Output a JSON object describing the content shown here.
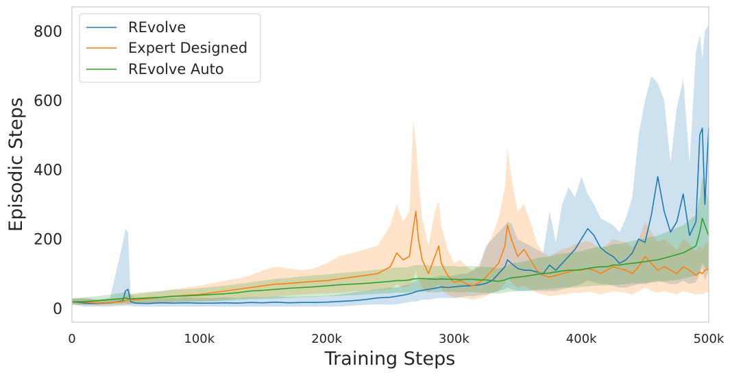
{
  "chart_data": {
    "type": "line",
    "title": "",
    "xlabel": "Training Steps",
    "ylabel": "Episodic Steps",
    "xlim": [
      0,
      500000
    ],
    "ylim": [
      -40,
      870
    ],
    "x_ticks": [
      0,
      100000,
      200000,
      300000,
      400000,
      500000
    ],
    "x_tick_labels": [
      "0",
      "100k",
      "200k",
      "300k",
      "400k",
      "500k"
    ],
    "y_ticks": [
      0,
      200,
      400,
      600,
      800
    ],
    "y_tick_labels": [
      "0",
      "200",
      "400",
      "600",
      "800"
    ],
    "grid": false,
    "legend": "top-left",
    "x": [
      0,
      10000,
      20000,
      30000,
      40000,
      42000,
      44000,
      46000,
      50000,
      60000,
      70000,
      80000,
      90000,
      100000,
      110000,
      120000,
      130000,
      140000,
      150000,
      160000,
      170000,
      180000,
      190000,
      200000,
      210000,
      220000,
      230000,
      240000,
      250000,
      255000,
      260000,
      265000,
      268000,
      270000,
      272000,
      275000,
      280000,
      285000,
      288000,
      290000,
      295000,
      300000,
      305000,
      310000,
      315000,
      320000,
      325000,
      330000,
      335000,
      340000,
      342000,
      345000,
      350000,
      355000,
      360000,
      365000,
      370000,
      375000,
      380000,
      385000,
      390000,
      395000,
      400000,
      405000,
      410000,
      415000,
      420000,
      425000,
      430000,
      435000,
      440000,
      445000,
      450000,
      455000,
      460000,
      465000,
      470000,
      475000,
      480000,
      485000,
      490000,
      493000,
      495000,
      497000,
      500000
    ],
    "series": [
      {
        "name": "REvolve",
        "color": "#1f77b4",
        "values": [
          20,
          15,
          14,
          16,
          22,
          50,
          55,
          20,
          15,
          14,
          16,
          15,
          16,
          15,
          15,
          16,
          15,
          17,
          16,
          18,
          16,
          17,
          17,
          18,
          20,
          22,
          25,
          30,
          32,
          35,
          38,
          42,
          45,
          48,
          50,
          52,
          55,
          58,
          60,
          62,
          60,
          62,
          64,
          65,
          66,
          68,
          72,
          80,
          100,
          120,
          140,
          130,
          115,
          110,
          110,
          105,
          100,
          125,
          110,
          130,
          150,
          170,
          200,
          230,
          210,
          175,
          160,
          150,
          130,
          140,
          160,
          200,
          190,
          270,
          380,
          280,
          220,
          250,
          330,
          210,
          250,
          500,
          520,
          300,
          520
        ],
        "upper": [
          28,
          30,
          25,
          30,
          190,
          230,
          220,
          40,
          30,
          28,
          30,
          30,
          32,
          30,
          30,
          32,
          30,
          33,
          32,
          35,
          33,
          34,
          35,
          36,
          40,
          45,
          50,
          55,
          60,
          60,
          65,
          70,
          75,
          80,
          82,
          85,
          88,
          90,
          92,
          95,
          92,
          95,
          100,
          100,
          110,
          120,
          180,
          200,
          220,
          240,
          250,
          245,
          200,
          190,
          180,
          170,
          160,
          280,
          190,
          300,
          350,
          320,
          380,
          330,
          300,
          260,
          250,
          240,
          220,
          260,
          320,
          500,
          600,
          670,
          650,
          600,
          420,
          580,
          660,
          420,
          740,
          790,
          720,
          800,
          820
        ],
        "lower": [
          12,
          5,
          5,
          5,
          8,
          8,
          8,
          8,
          5,
          5,
          5,
          5,
          5,
          5,
          5,
          5,
          5,
          5,
          5,
          5,
          5,
          5,
          5,
          5,
          5,
          8,
          10,
          12,
          10,
          12,
          15,
          18,
          20,
          20,
          22,
          25,
          25,
          28,
          30,
          30,
          30,
          30,
          32,
          35,
          35,
          38,
          40,
          45,
          50,
          55,
          60,
          55,
          50,
          50,
          50,
          50,
          50,
          50,
          50,
          55,
          60,
          65,
          70,
          80,
          75,
          70,
          70,
          65,
          60,
          60,
          65,
          70,
          70,
          75,
          80,
          75,
          70,
          70,
          80,
          70,
          75,
          100,
          120,
          80,
          110
        ]
      },
      {
        "name": "Expert Designed",
        "color": "#ff7f0e",
        "values": [
          20,
          18,
          15,
          17,
          20,
          22,
          25,
          25,
          25,
          28,
          32,
          35,
          38,
          40,
          45,
          50,
          55,
          60,
          65,
          70,
          72,
          75,
          78,
          80,
          85,
          90,
          95,
          100,
          120,
          160,
          140,
          150,
          230,
          280,
          200,
          140,
          100,
          150,
          180,
          130,
          95,
          75,
          80,
          70,
          65,
          75,
          90,
          110,
          130,
          180,
          240,
          200,
          150,
          170,
          140,
          110,
          95,
          90,
          95,
          100,
          105,
          110,
          110,
          115,
          110,
          100,
          110,
          120,
          115,
          110,
          100,
          120,
          150,
          130,
          110,
          120,
          110,
          100,
          120,
          110,
          95,
          105,
          100,
          110,
          115
        ],
        "upper": [
          30,
          28,
          25,
          28,
          32,
          35,
          40,
          40,
          40,
          45,
          50,
          55,
          60,
          65,
          72,
          80,
          85,
          95,
          110,
          120,
          115,
          110,
          115,
          130,
          150,
          160,
          170,
          180,
          240,
          300,
          250,
          280,
          540,
          480,
          380,
          260,
          180,
          280,
          310,
          240,
          170,
          130,
          140,
          120,
          110,
          130,
          170,
          210,
          260,
          350,
          460,
          380,
          280,
          300,
          250,
          190,
          160,
          150,
          160,
          170,
          175,
          185,
          190,
          195,
          185,
          170,
          185,
          200,
          195,
          190,
          175,
          200,
          250,
          220,
          190,
          200,
          185,
          170,
          200,
          185,
          165,
          180,
          170,
          185,
          190
        ],
        "lower": [
          12,
          10,
          8,
          9,
          10,
          10,
          12,
          12,
          12,
          14,
          16,
          18,
          20,
          20,
          22,
          25,
          28,
          30,
          32,
          35,
          37,
          40,
          42,
          43,
          45,
          48,
          50,
          52,
          55,
          70,
          60,
          65,
          80,
          110,
          80,
          60,
          45,
          60,
          70,
          55,
          40,
          30,
          32,
          28,
          25,
          30,
          35,
          45,
          50,
          70,
          90,
          75,
          60,
          65,
          55,
          45,
          40,
          35,
          38,
          40,
          42,
          45,
          45,
          48,
          45,
          40,
          45,
          50,
          48,
          45,
          40,
          50,
          60,
          50,
          45,
          50,
          45,
          40,
          50,
          45,
          40,
          42,
          40,
          45,
          48
        ]
      },
      {
        "name": "REvolve Auto",
        "color": "#2ca02c",
        "values": [
          18,
          20,
          22,
          25,
          28,
          30,
          28,
          27,
          28,
          30,
          32,
          35,
          36,
          38,
          40,
          42,
          45,
          50,
          52,
          55,
          58,
          60,
          62,
          65,
          68,
          70,
          72,
          75,
          78,
          80,
          80,
          82,
          85,
          85,
          86,
          86,
          85,
          84,
          84,
          85,
          84,
          84,
          83,
          84,
          84,
          82,
          82,
          80,
          78,
          82,
          85,
          88,
          90,
          92,
          95,
          98,
          100,
          102,
          105,
          108,
          110,
          110,
          112,
          115,
          118,
          120,
          120,
          125,
          125,
          128,
          130,
          132,
          135,
          138,
          140,
          145,
          150,
          155,
          160,
          170,
          180,
          220,
          260,
          240,
          210
        ],
        "upper": [
          28,
          32,
          35,
          40,
          45,
          48,
          45,
          42,
          44,
          47,
          50,
          54,
          55,
          58,
          62,
          65,
          70,
          75,
          80,
          85,
          88,
          92,
          95,
          98,
          102,
          105,
          108,
          112,
          116,
          118,
          118,
          120,
          124,
          124,
          125,
          125,
          124,
          122,
          122,
          124,
          122,
          122,
          120,
          122,
          122,
          120,
          120,
          118,
          115,
          120,
          125,
          130,
          132,
          135,
          140,
          145,
          148,
          150,
          155,
          158,
          160,
          162,
          165,
          170,
          175,
          178,
          178,
          185,
          186,
          190,
          195,
          198,
          202,
          206,
          210,
          218,
          225,
          232,
          240,
          255,
          270,
          320,
          380,
          350,
          310
        ],
        "lower": [
          10,
          10,
          12,
          13,
          14,
          15,
          14,
          13,
          14,
          15,
          16,
          18,
          18,
          20,
          20,
          22,
          24,
          26,
          27,
          28,
          30,
          32,
          33,
          35,
          36,
          38,
          40,
          42,
          44,
          45,
          45,
          46,
          48,
          48,
          48,
          48,
          47,
          46,
          46,
          48,
          47,
          47,
          46,
          47,
          47,
          45,
          45,
          44,
          42,
          45,
          47,
          48,
          50,
          50,
          52,
          54,
          55,
          56,
          58,
          60,
          60,
          60,
          62,
          63,
          65,
          66,
          66,
          68,
          68,
          70,
          72,
          72,
          74,
          75,
          76,
          78,
          80,
          82,
          85,
          90,
          95,
          110,
          130,
          120,
          105
        ]
      }
    ]
  }
}
